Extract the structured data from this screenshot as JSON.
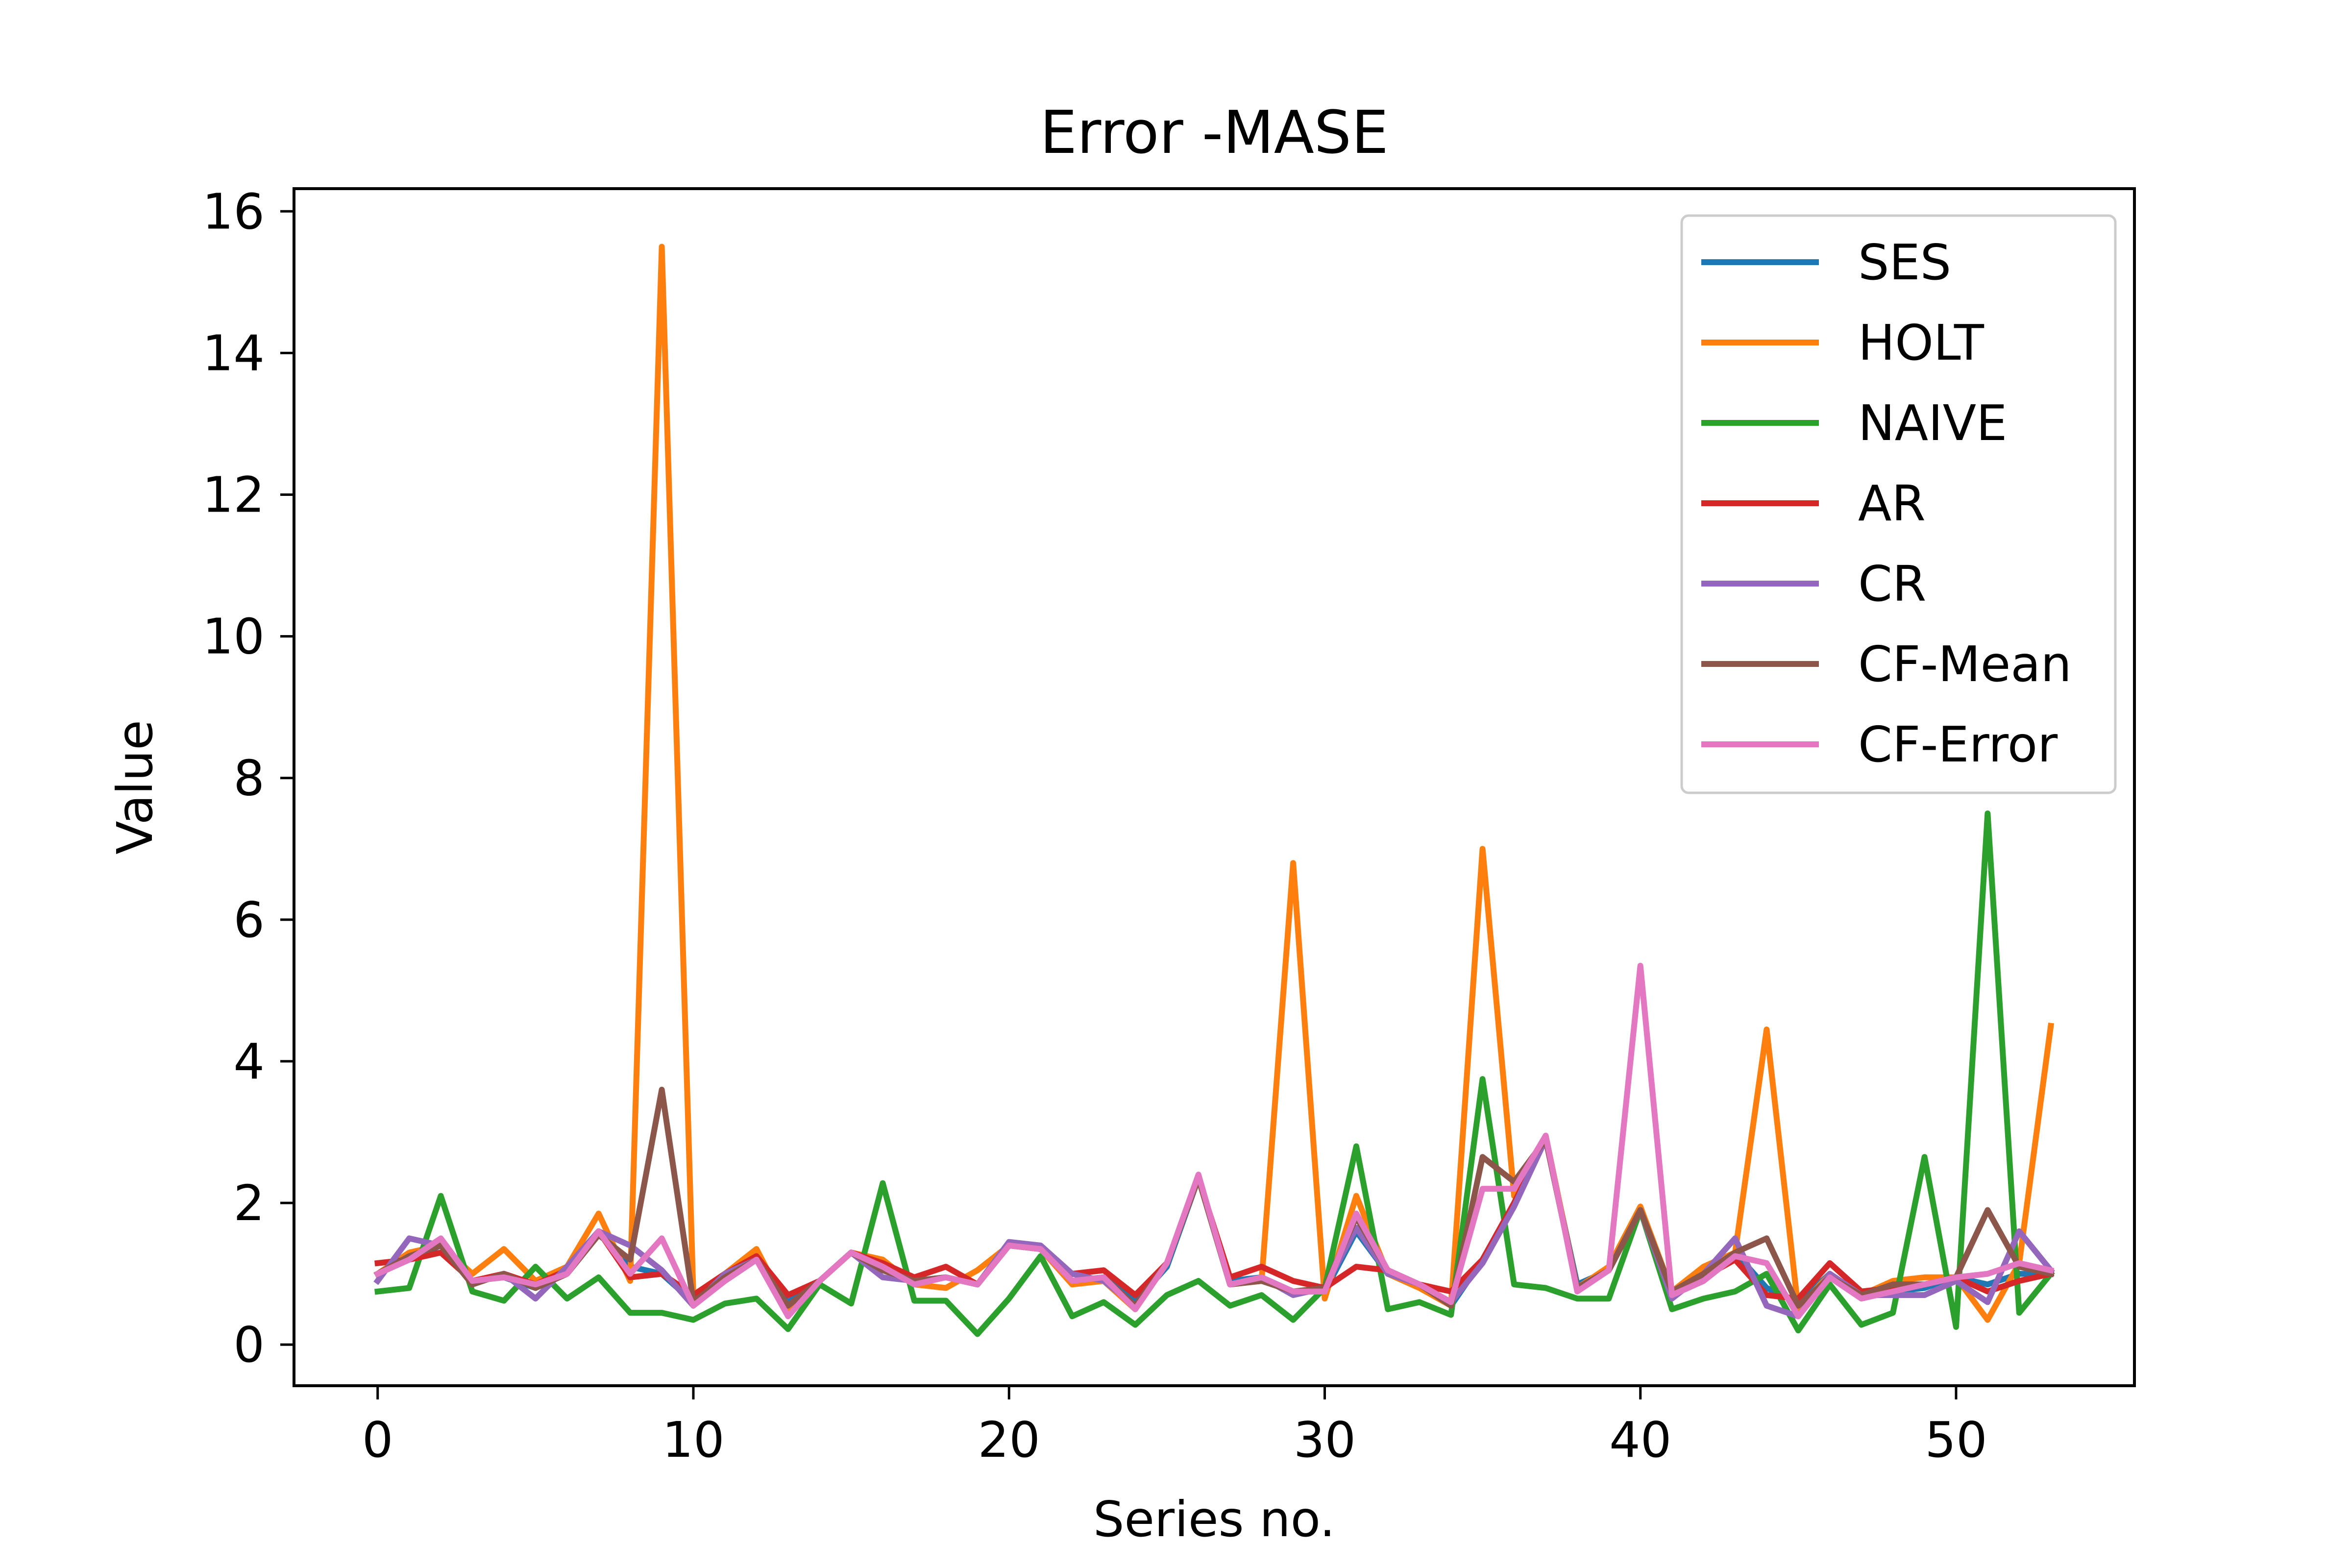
{
  "chart_data": {
    "type": "line",
    "title": "Error -MASE",
    "xlabel": "Series no.",
    "ylabel": "Value",
    "xlim": [
      -2.65,
      55.65
    ],
    "ylim": [
      -0.58,
      16.32
    ],
    "xticks": [
      0,
      10,
      20,
      30,
      40,
      50
    ],
    "yticks": [
      0,
      2,
      4,
      6,
      8,
      10,
      12,
      14,
      16
    ],
    "grid": false,
    "legend_position": "top-right",
    "x": [
      0,
      1,
      2,
      3,
      4,
      5,
      6,
      7,
      8,
      9,
      10,
      11,
      12,
      13,
      14,
      15,
      16,
      17,
      18,
      19,
      20,
      21,
      22,
      23,
      24,
      25,
      26,
      27,
      28,
      29,
      30,
      31,
      32,
      33,
      34,
      35,
      36,
      37,
      38,
      39,
      40,
      41,
      42,
      43,
      44,
      45,
      46,
      47,
      48,
      49,
      50,
      51,
      52,
      53
    ],
    "series": [
      {
        "name": "SES",
        "color": "#1f77b4",
        "values": [
          1.0,
          1.2,
          1.4,
          0.9,
          0.95,
          0.8,
          1.1,
          1.6,
          1.1,
          1.0,
          0.6,
          0.9,
          1.2,
          0.6,
          0.9,
          1.3,
          1.1,
          0.9,
          0.95,
          0.85,
          1.4,
          1.35,
          0.9,
          0.95,
          0.6,
          1.1,
          2.35,
          0.9,
          0.95,
          0.75,
          0.75,
          1.6,
          1.0,
          0.85,
          0.55,
          1.2,
          2.0,
          2.9,
          0.85,
          1.05,
          1.9,
          0.7,
          0.9,
          1.3,
          0.8,
          0.6,
          1.0,
          0.7,
          0.75,
          0.8,
          0.95,
          0.85,
          1.0,
          1.0
        ]
      },
      {
        "name": "HOLT",
        "color": "#ff7f0e",
        "values": [
          1.0,
          1.3,
          1.4,
          1.0,
          1.35,
          0.9,
          1.1,
          1.85,
          0.9,
          15.5,
          0.7,
          1.0,
          1.35,
          0.5,
          0.9,
          1.3,
          1.2,
          0.85,
          0.8,
          1.05,
          1.4,
          1.35,
          0.85,
          0.9,
          0.5,
          1.15,
          2.35,
          0.85,
          0.9,
          6.8,
          0.65,
          2.1,
          1.0,
          0.8,
          0.55,
          7.0,
          2.1,
          2.95,
          0.8,
          1.1,
          1.95,
          0.75,
          1.1,
          1.3,
          4.45,
          0.5,
          1.0,
          0.7,
          0.9,
          0.95,
          0.95,
          0.35,
          1.15,
          4.5
        ]
      },
      {
        "name": "NAIVE",
        "color": "#2ca02c",
        "values": [
          0.75,
          0.8,
          2.1,
          0.75,
          0.62,
          1.1,
          0.65,
          0.95,
          0.45,
          0.45,
          0.35,
          0.58,
          0.65,
          0.22,
          0.85,
          0.58,
          2.28,
          0.62,
          0.62,
          0.15,
          0.65,
          1.25,
          0.4,
          0.6,
          0.28,
          0.7,
          0.9,
          0.55,
          0.7,
          0.35,
          0.8,
          2.8,
          0.5,
          0.6,
          0.42,
          3.75,
          0.85,
          0.8,
          0.65,
          0.65,
          1.9,
          0.5,
          0.65,
          0.75,
          1.0,
          0.2,
          0.85,
          0.28,
          0.45,
          2.65,
          0.25,
          7.5,
          0.45,
          1.0
        ]
      },
      {
        "name": "AR",
        "color": "#d62728",
        "values": [
          1.15,
          1.2,
          1.3,
          0.9,
          1.0,
          0.85,
          1.05,
          1.6,
          0.95,
          1.0,
          0.7,
          1.0,
          1.25,
          0.7,
          0.9,
          1.3,
          1.15,
          0.95,
          1.1,
          0.85,
          1.4,
          1.35,
          1.0,
          1.05,
          0.7,
          1.15,
          2.35,
          0.95,
          1.1,
          0.9,
          0.8,
          1.1,
          1.05,
          0.85,
          0.75,
          1.2,
          2.0,
          2.9,
          0.8,
          1.05,
          1.9,
          0.75,
          0.95,
          1.2,
          0.7,
          0.65,
          1.15,
          0.75,
          0.8,
          0.85,
          0.95,
          0.75,
          0.9,
          1.0
        ]
      },
      {
        "name": "CR",
        "color": "#9467bd",
        "values": [
          0.9,
          1.5,
          1.4,
          0.85,
          1.0,
          0.65,
          1.1,
          1.6,
          1.4,
          1.05,
          0.55,
          1.0,
          1.2,
          0.55,
          0.9,
          1.3,
          0.95,
          0.9,
          0.95,
          0.85,
          1.45,
          1.4,
          1.0,
          0.9,
          0.55,
          1.15,
          2.35,
          0.85,
          0.95,
          0.7,
          0.8,
          1.65,
          1.0,
          0.85,
          0.6,
          1.15,
          1.95,
          2.9,
          0.8,
          1.05,
          1.9,
          0.65,
          1.0,
          1.5,
          0.55,
          0.4,
          1.0,
          0.7,
          0.7,
          0.7,
          0.9,
          0.6,
          1.6,
          1.05
        ]
      },
      {
        "name": "CF-Mean",
        "color": "#8c564b",
        "values": [
          1.0,
          1.25,
          1.4,
          0.85,
          1.0,
          0.8,
          1.0,
          1.55,
          1.2,
          3.6,
          0.6,
          0.95,
          1.2,
          0.55,
          0.9,
          1.3,
          1.05,
          0.9,
          0.95,
          0.85,
          1.4,
          1.35,
          0.9,
          0.95,
          0.55,
          1.15,
          2.35,
          0.85,
          0.9,
          0.75,
          0.8,
          1.8,
          1.05,
          0.85,
          0.55,
          2.65,
          2.3,
          2.9,
          0.8,
          1.05,
          1.9,
          0.75,
          1.0,
          1.3,
          1.5,
          0.55,
          0.95,
          0.7,
          0.85,
          0.85,
          0.95,
          1.9,
          1.1,
          1.0
        ]
      },
      {
        "name": "CF-Error",
        "color": "#e377c2",
        "values": [
          1.0,
          1.2,
          1.5,
          0.9,
          0.95,
          0.85,
          1.0,
          1.6,
          1.0,
          1.5,
          0.55,
          0.9,
          1.2,
          0.4,
          0.9,
          1.3,
          1.1,
          0.85,
          0.95,
          0.85,
          1.4,
          1.35,
          0.9,
          0.95,
          0.5,
          1.15,
          2.4,
          0.85,
          0.95,
          0.75,
          0.75,
          1.85,
          1.05,
          0.85,
          0.6,
          2.2,
          2.2,
          2.95,
          0.75,
          1.05,
          5.35,
          0.7,
          0.9,
          1.25,
          1.15,
          0.4,
          0.95,
          0.65,
          0.75,
          0.85,
          0.95,
          1.0,
          1.15,
          1.05
        ]
      }
    ]
  }
}
